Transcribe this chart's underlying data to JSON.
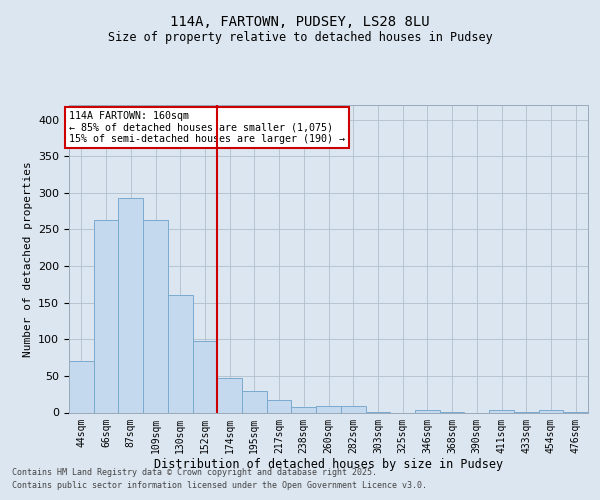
{
  "title1": "114A, FARTOWN, PUDSEY, LS28 8LU",
  "title2": "Size of property relative to detached houses in Pudsey",
  "xlabel": "Distribution of detached houses by size in Pudsey",
  "ylabel": "Number of detached properties",
  "categories": [
    "44sqm",
    "66sqm",
    "87sqm",
    "109sqm",
    "130sqm",
    "152sqm",
    "174sqm",
    "195sqm",
    "217sqm",
    "238sqm",
    "260sqm",
    "282sqm",
    "303sqm",
    "325sqm",
    "346sqm",
    "368sqm",
    "390sqm",
    "411sqm",
    "433sqm",
    "454sqm",
    "476sqm"
  ],
  "values": [
    70,
    263,
    293,
    263,
    160,
    98,
    47,
    30,
    17,
    8,
    9,
    9,
    1,
    0,
    4,
    1,
    0,
    3,
    1,
    3,
    1
  ],
  "bar_color": "#c5d9ee",
  "bar_edge_color": "#7aaacf",
  "vline_x": 5.5,
  "vline_color": "#cc0000",
  "annotation_text": "114A FARTOWN: 160sqm\n← 85% of detached houses are smaller (1,075)\n15% of semi-detached houses are larger (190) →",
  "annotation_box_color": "#ffffff",
  "annotation_box_edge": "#cc0000",
  "background_color": "#dce6f0",
  "plot_bg_color": "#dce6f0",
  "footer1": "Contains HM Land Registry data © Crown copyright and database right 2025.",
  "footer2": "Contains public sector information licensed under the Open Government Licence v3.0.",
  "ylim": [
    0,
    420
  ],
  "yticks": [
    0,
    50,
    100,
    150,
    200,
    250,
    300,
    350,
    400
  ]
}
